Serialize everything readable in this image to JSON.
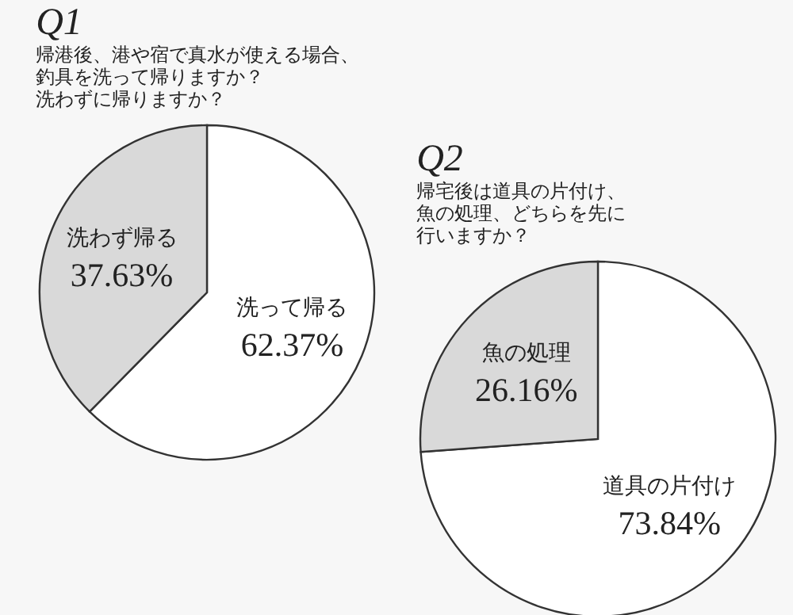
{
  "chart_data": [
    {
      "type": "pie",
      "title": "Q1",
      "subtitle": "帰港後、港や宿で真水が使える場合、釣具を洗って帰りますか？洗わずに帰りますか？",
      "categories": [
        "洗って帰る",
        "洗わず帰る"
      ],
      "values": [
        62.37,
        37.63
      ],
      "value_labels": [
        "62.37%",
        "37.63%"
      ],
      "colors": [
        "#ffffff",
        "#d9d9d9"
      ]
    },
    {
      "type": "pie",
      "title": "Q2",
      "subtitle": "帰宅後は道具の片付け、魚の処理、どちらを先に行いますか？",
      "categories": [
        "道具の片付け",
        "魚の処理"
      ],
      "values": [
        73.84,
        26.16
      ],
      "value_labels": [
        "73.84%",
        "26.16%"
      ],
      "colors": [
        "#ffffff",
        "#d9d9d9"
      ]
    }
  ]
}
